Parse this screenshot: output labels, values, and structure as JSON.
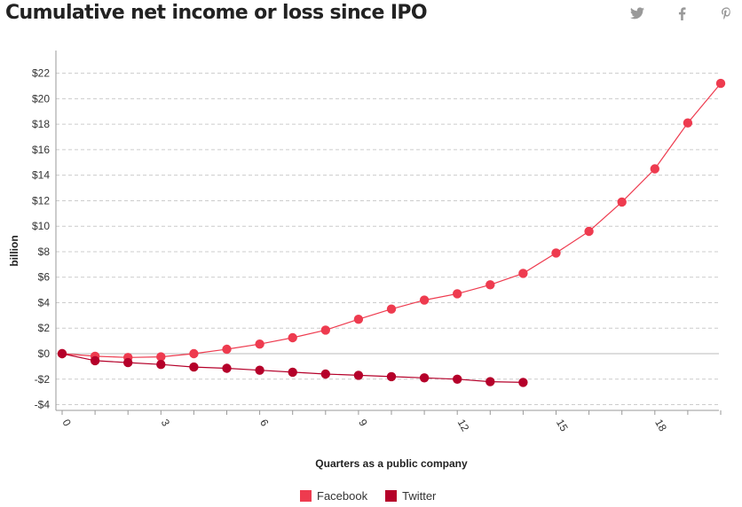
{
  "header": {
    "title": "Cumulative net income or loss since IPO",
    "share": [
      {
        "name": "twitter-icon"
      },
      {
        "name": "facebook-icon"
      },
      {
        "name": "pinterest-icon"
      }
    ]
  },
  "colors": {
    "facebook": "#ee3b4f",
    "twitter": "#b5002a",
    "grid": "#cccccc",
    "axis": "#999999"
  },
  "chart_data": {
    "type": "line",
    "title": "Cumulative net income or loss since IPO",
    "xlabel": "Quarters as a public company",
    "ylabel": "billion",
    "xlim": [
      0,
      20
    ],
    "ylim": [
      -4,
      23
    ],
    "x_ticks": [
      0,
      3,
      6,
      9,
      12,
      15,
      18
    ],
    "x_tick_labels": [
      "0",
      "3",
      "6",
      "9",
      "12",
      "15",
      "18"
    ],
    "y_ticks": [
      -4,
      -2,
      0,
      2,
      4,
      6,
      8,
      10,
      12,
      14,
      16,
      18,
      20,
      22
    ],
    "y_tick_labels": [
      "-$4",
      "-$2",
      "$0",
      "$2",
      "$4",
      "$6",
      "$8",
      "$10",
      "$12",
      "$14",
      "$16",
      "$18",
      "$20",
      "$22"
    ],
    "grid": true,
    "legend_position": "bottom-center",
    "series": [
      {
        "name": "Facebook",
        "color": "#ee3b4f",
        "x": [
          0,
          1,
          2,
          3,
          4,
          5,
          6,
          7,
          8,
          9,
          10,
          11,
          12,
          13,
          14,
          15,
          16,
          17,
          18,
          19,
          20
        ],
        "values": [
          0,
          -0.2,
          -0.3,
          -0.25,
          0.0,
          0.35,
          0.75,
          1.25,
          1.85,
          2.7,
          3.5,
          4.2,
          4.7,
          5.4,
          6.3,
          7.9,
          9.6,
          11.9,
          14.5,
          18.1,
          21.2
        ]
      },
      {
        "name": "Twitter",
        "color": "#b5002a",
        "x": [
          0,
          1,
          2,
          3,
          4,
          5,
          6,
          7,
          8,
          9,
          10,
          11,
          12,
          13,
          14
        ],
        "values": [
          0,
          -0.55,
          -0.7,
          -0.85,
          -1.05,
          -1.15,
          -1.3,
          -1.45,
          -1.6,
          -1.7,
          -1.8,
          -1.9,
          -2.0,
          -2.2,
          -2.25
        ]
      }
    ]
  }
}
